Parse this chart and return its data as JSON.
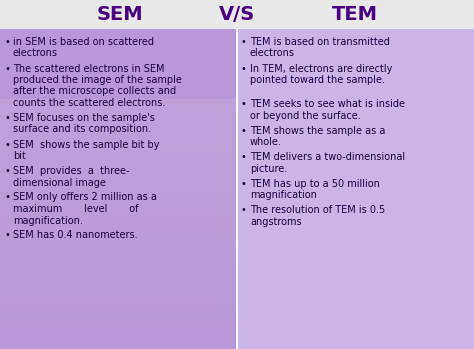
{
  "title_left": "SEM",
  "title_mid": "V/S",
  "title_right": "TEM",
  "title_color": "#4a0080",
  "title_bg": "#d8d8d8",
  "bg_left": "#b090cc",
  "bg_right": "#c8a8e0",
  "bg_overall": "#a878c8",
  "text_color": "#1a0040",
  "sem_points": [
    "in SEM is based on scattered\nelectrons",
    "The scattered electrons in SEM\nproduced the image of the sample\nafter the microscope collects and\ncounts the scattered electrons.",
    "SEM focuses on the sample's\nsurface and its composition.",
    "SEM  shows the sample bit by\nbit",
    "SEM  provides  a  three-\ndimensional image",
    "SEM only offers 2 million as a\nmaximum       level       of\nmagnification.",
    "SEM has 0.4 nanometers."
  ],
  "tem_points": [
    "TEM is based on transmitted\nelectrons",
    "In TEM, electrons are directly\npointed toward the sample.",
    "",
    "TEM seeks to see what is inside\nor beyond the surface.",
    "TEM shows the sample as a\nwhole.",
    "TEM delivers a two-dimensional\npicture.",
    "TEM has up to a 50 million\nmagnification",
    "The resolution of TEM is 0.5\nangstroms"
  ],
  "font_size": 7.0,
  "bullet": "•"
}
